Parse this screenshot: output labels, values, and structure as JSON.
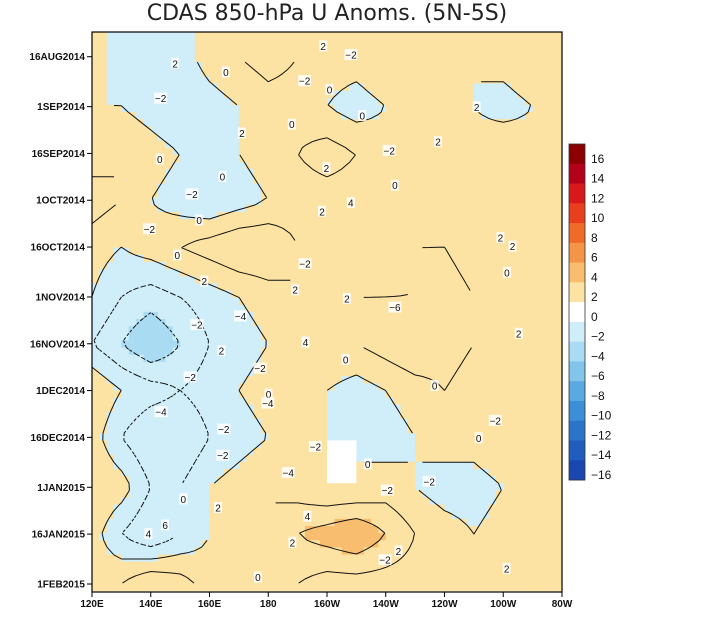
{
  "chart_data": {
    "type": "heatmap",
    "title": "CDAS 850-hPa U Anoms. (5N-5S)",
    "xlabel": "",
    "ylabel": "",
    "x_ticks": [
      "120E",
      "140E",
      "160E",
      "180",
      "160W",
      "140W",
      "120W",
      "100W",
      "80W"
    ],
    "x_range_deg_east": [
      120,
      280
    ],
    "y_ticks": [
      "16AUG2014",
      "1SEP2014",
      "16SEP2014",
      "1OCT2014",
      "16OCT2014",
      "1NOV2014",
      "16NOV2014",
      "1DEC2014",
      "16DEC2014",
      "1JAN2015",
      "16JAN2015",
      "1FEB2015"
    ],
    "y_range": [
      "10AUG2014",
      "1FEB2015"
    ],
    "contour_interval": 2,
    "negative_contours": "dashed",
    "colorbar": {
      "levels": [
        -16,
        -14,
        -12,
        -10,
        -8,
        -6,
        -4,
        -2,
        0,
        2,
        4,
        6,
        8,
        10,
        12,
        14,
        16
      ],
      "labels": [
        "16",
        "14",
        "12",
        "10",
        "8",
        "6",
        "4",
        "2",
        "0",
        "−2",
        "−4",
        "−6",
        "−8",
        "−10",
        "−12",
        "−14",
        "−16"
      ],
      "colors": [
        "#8b0000",
        "#b3001b",
        "#d7191c",
        "#e8401f",
        "#f06a28",
        "#f49446",
        "#f8bd6e",
        "#fce3a3",
        "#ffffff",
        "#cfeefa",
        "#a9dcf2",
        "#82c4ea",
        "#5aa9e0",
        "#3c8fd6",
        "#2c74c8",
        "#205dbd",
        "#1a47b0"
      ]
    },
    "field": [
      {
        "date": "16AUG2014",
        "values": [
          1,
          -1,
          -2,
          -1,
          1,
          2,
          3,
          2,
          1,
          1,
          2,
          2,
          1,
          0,
          1,
          2,
          1
        ]
      },
      {
        "date": "1SEP2014",
        "values": [
          0,
          0,
          -1,
          -2,
          -1,
          0,
          1,
          1,
          0,
          -1,
          0,
          1,
          1,
          0,
          -1,
          0,
          1
        ]
      },
      {
        "date": "16SEP2014",
        "values": [
          1,
          2,
          1,
          0,
          -1,
          0,
          1,
          2,
          3,
          2,
          1,
          0,
          1,
          1,
          2,
          1,
          2
        ]
      },
      {
        "date": "1OCT2014",
        "values": [
          3,
          2,
          0,
          -1,
          -2,
          -1,
          0,
          1,
          1,
          1,
          0,
          0,
          1,
          1,
          1,
          0,
          1
        ]
      },
      {
        "date": "16OCT2014",
        "values": [
          1,
          0,
          1,
          2,
          3,
          4,
          4,
          2,
          1,
          1,
          1,
          2,
          2,
          1,
          1,
          2,
          2
        ]
      },
      {
        "date": "1NOV2014",
        "values": [
          0,
          -2,
          -3,
          -2,
          -1,
          0,
          1,
          2,
          1,
          2,
          2,
          2,
          3,
          2,
          1,
          2,
          2
        ]
      },
      {
        "date": "16NOV2014",
        "values": [
          -2,
          -4,
          -6,
          -4,
          -2,
          -1,
          0,
          1,
          2,
          2,
          3,
          4,
          3,
          2,
          2,
          1,
          1
        ]
      },
      {
        "date": "1DEC2014",
        "values": [
          2,
          0,
          -1,
          -2,
          -1,
          0,
          1,
          1,
          0,
          -1,
          0,
          1,
          2,
          1,
          0,
          1,
          2
        ]
      },
      {
        "date": "16DEC2014",
        "values": [
          1,
          -2,
          -4,
          -4,
          -2,
          -1,
          0,
          1,
          0,
          0,
          -1,
          0,
          1,
          1,
          2,
          1,
          2
        ]
      },
      {
        "date": "1JAN2015",
        "values": [
          2,
          1,
          -2,
          -2,
          0,
          1,
          2,
          1,
          0,
          0,
          1,
          0,
          -1,
          -1,
          0,
          1,
          1
        ]
      },
      {
        "date": "16JAN2015",
        "values": [
          1,
          -2,
          -4,
          -2,
          0,
          1,
          2,
          4,
          5,
          6,
          4,
          2,
          1,
          0,
          1,
          2,
          1
        ]
      },
      {
        "date": "1FEB2015",
        "values": [
          1,
          2,
          4,
          3,
          1,
          1,
          2,
          2,
          1,
          1,
          1,
          1,
          1,
          1,
          0,
          0,
          1
        ]
      }
    ],
    "field_lon_deg_east": [
      120,
      130,
      140,
      150,
      160,
      170,
      180,
      190,
      200,
      210,
      220,
      230,
      240,
      250,
      260,
      270,
      280
    ],
    "contour_labels": [
      "2",
      "−2",
      "2",
      "0",
      "−2",
      "0",
      "−2",
      "2",
      "0",
      "0",
      "2",
      "2",
      "−2",
      "0",
      "2",
      "0",
      "0",
      "−2",
      "4",
      "2",
      "0",
      "−2",
      "2",
      "2",
      "0",
      "−2",
      "0",
      "2",
      "2",
      "2",
      "−6",
      "−4",
      "−2",
      "2",
      "4",
      "2",
      "0",
      "−2",
      "−2",
      "0",
      "0",
      "−4",
      "−4",
      "−2",
      "−2",
      "0",
      "−2",
      "−2",
      "0",
      "−4",
      "−2",
      "−2",
      "0",
      "2",
      "4",
      "6",
      "4",
      "2",
      "2",
      "−2",
      "2",
      "0"
    ]
  }
}
